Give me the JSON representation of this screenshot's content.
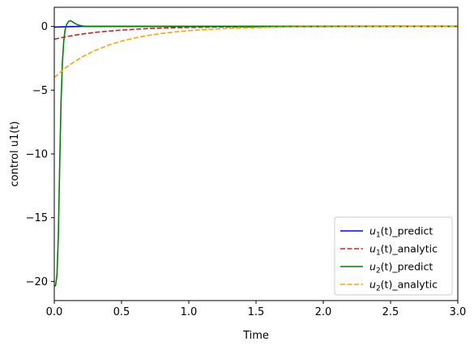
{
  "chart_data": {
    "type": "line",
    "xlabel": "Time",
    "ylabel": "control u1(t)",
    "xlim": [
      0,
      3
    ],
    "ylim": [
      -21.5,
      1.5
    ],
    "x_ticks": [
      0.0,
      0.5,
      1.0,
      1.5,
      2.0,
      2.5,
      3.0
    ],
    "x_tick_labels": [
      "0.0",
      "0.5",
      "1.0",
      "1.5",
      "2.0",
      "2.5",
      "3.0"
    ],
    "y_ticks": [
      0,
      -5,
      -10,
      -15,
      -20
    ],
    "y_tick_labels": [
      "0",
      "−5",
      "−10",
      "−15",
      "−20"
    ],
    "grid": false,
    "legend_placement": "lower-right",
    "series": [
      {
        "name_var": "u",
        "name_sub": "1",
        "name_rest": "(t)_predict",
        "color": "#0000ff",
        "dash": "solid",
        "x": [
          0,
          0.1,
          0.2,
          0.3,
          0.5,
          1.0,
          1.5,
          2.0,
          2.5,
          3.0
        ],
        "y": [
          -0.05,
          -0.02,
          0,
          0,
          0,
          0,
          0,
          0,
          0,
          0
        ]
      },
      {
        "name_var": "u",
        "name_sub": "1",
        "name_rest": "(t)_analytic",
        "color": "#d62020",
        "dash": "dashed",
        "x": [
          0,
          0.1,
          0.2,
          0.3,
          0.4,
          0.5,
          0.6,
          0.7,
          0.8,
          0.9,
          1.0,
          1.2,
          1.4,
          1.6,
          2.0,
          2.5,
          3.0
        ],
        "y": [
          -1.0,
          -0.78,
          -0.61,
          -0.47,
          -0.37,
          -0.29,
          -0.22,
          -0.17,
          -0.13,
          -0.1,
          -0.08,
          -0.05,
          -0.03,
          -0.02,
          -0.01,
          0,
          0
        ]
      },
      {
        "name_var": "u",
        "name_sub": "2",
        "name_rest": "(t)_predict",
        "color": "#008000",
        "dash": "solid",
        "x": [
          0,
          0.01,
          0.02,
          0.03,
          0.04,
          0.05,
          0.06,
          0.07,
          0.08,
          0.09,
          0.1,
          0.11,
          0.12,
          0.13,
          0.14,
          0.16,
          0.18,
          0.2,
          0.22,
          0.25,
          0.3,
          0.5,
          1.0,
          1.5,
          2.0,
          2.5,
          3.0
        ],
        "y": [
          -20.4,
          -20.3,
          -19.5,
          -16.5,
          -11.0,
          -6.0,
          -2.9,
          -1.2,
          -0.3,
          0.1,
          0.3,
          0.42,
          0.45,
          0.4,
          0.32,
          0.2,
          0.1,
          0.05,
          0.02,
          0,
          0,
          0,
          0,
          0,
          0,
          0,
          0
        ]
      },
      {
        "name_var": "u",
        "name_sub": "2",
        "name_rest": "(t)_analytic",
        "color": "#ffa500",
        "dash": "dashed",
        "x": [
          0,
          0.1,
          0.2,
          0.3,
          0.4,
          0.5,
          0.6,
          0.7,
          0.8,
          0.9,
          1.0,
          1.1,
          1.2,
          1.4,
          1.6,
          1.8,
          2.0,
          2.5,
          3.0
        ],
        "y": [
          -4.0,
          -3.12,
          -2.43,
          -1.9,
          -1.48,
          -1.15,
          -0.9,
          -0.7,
          -0.55,
          -0.43,
          -0.33,
          -0.26,
          -0.2,
          -0.12,
          -0.07,
          -0.04,
          -0.03,
          -0.01,
          0
        ]
      }
    ]
  }
}
